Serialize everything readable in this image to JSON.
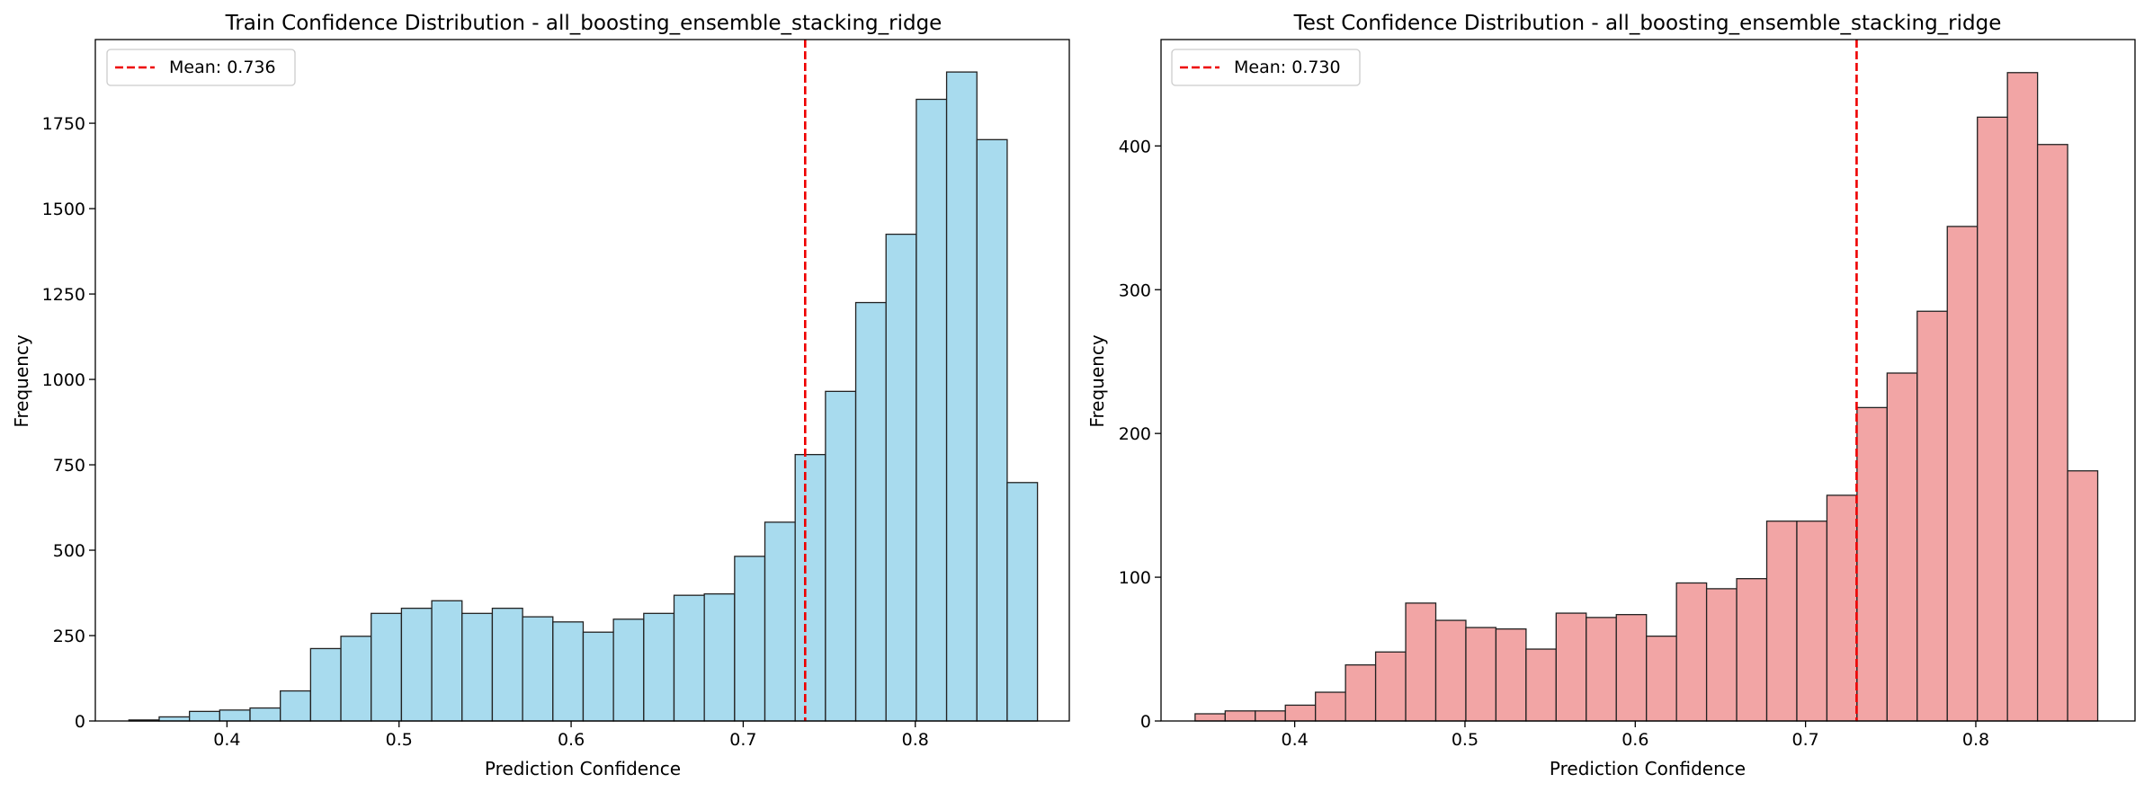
{
  "chart_data": [
    {
      "type": "bar",
      "title": "Train Confidence Distribution - all_boosting_ensemble_stacking_ridge",
      "xlabel": "Prediction Confidence",
      "ylabel": "Frequency",
      "xlim": [
        0.3235,
        0.8895
      ],
      "ylim": [
        0,
        1995
      ],
      "xticks": [
        0.4,
        0.5,
        0.6,
        0.7,
        0.8
      ],
      "xtick_labels": [
        "0.4",
        "0.5",
        "0.6",
        "0.7",
        "0.8"
      ],
      "yticks": [
        0,
        250,
        500,
        750,
        1000,
        1250,
        1500,
        1750
      ],
      "ytick_labels": [
        "0",
        "250",
        "500",
        "750",
        "1000",
        "1250",
        "1500",
        "1750"
      ],
      "bin_start": 0.343,
      "bin_width": 0.0176,
      "values": [
        3,
        12,
        28,
        32,
        38,
        88,
        212,
        248,
        315,
        330,
        352,
        315,
        330,
        305,
        290,
        260,
        298,
        315,
        368,
        372,
        482,
        582,
        780,
        965,
        1225,
        1425,
        1820,
        1900,
        1702,
        698
      ],
      "bar_color": "#a8dbee",
      "edge_color": "#222222",
      "mean": 0.736,
      "mean_color": "#ee0000",
      "legend": {
        "label": "Mean: 0.736",
        "position": "upper left"
      },
      "grid": false
    },
    {
      "type": "bar",
      "title": "Test Confidence Distribution - all_boosting_ensemble_stacking_ridge",
      "xlabel": "Prediction Confidence",
      "ylabel": "Frequency",
      "xlim": [
        0.3215,
        0.8935
      ],
      "ylim": [
        0,
        474
      ],
      "xticks": [
        0.4,
        0.5,
        0.6,
        0.7,
        0.8
      ],
      "xtick_labels": [
        "0.4",
        "0.5",
        "0.6",
        "0.7",
        "0.8"
      ],
      "yticks": [
        0,
        100,
        200,
        300,
        400
      ],
      "ytick_labels": [
        "0",
        "100",
        "200",
        "300",
        "400"
      ],
      "bin_start": 0.3415,
      "bin_width": 0.01767,
      "values": [
        5,
        7,
        7,
        11,
        20,
        39,
        48,
        82,
        70,
        65,
        64,
        50,
        75,
        72,
        74,
        59,
        96,
        92,
        99,
        139,
        139,
        157,
        218,
        242,
        285,
        344,
        420,
        451,
        401,
        174
      ],
      "bar_color": "#f2a5a5",
      "edge_color": "#222222",
      "mean": 0.73,
      "mean_color": "#ee0000",
      "legend": {
        "label": "Mean: 0.730",
        "position": "upper left"
      },
      "grid": false
    }
  ]
}
